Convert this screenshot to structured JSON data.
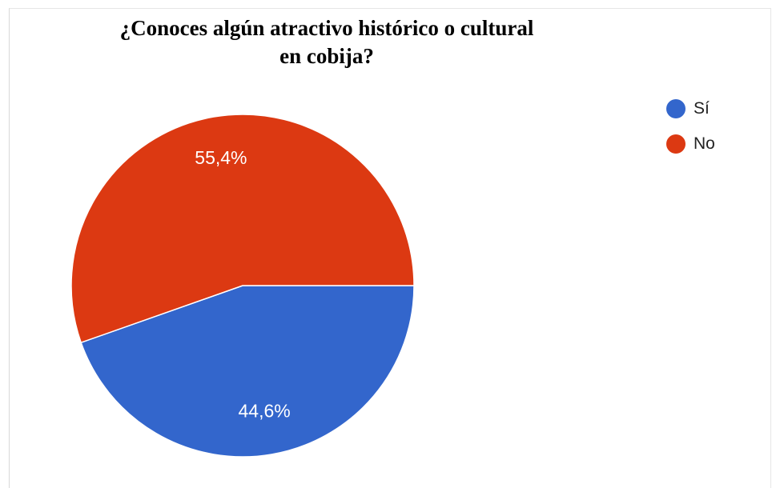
{
  "chart_data": {
    "type": "pie",
    "title_lines": [
      "¿Conoces algún atractivo histórico o cultural",
      "en cobija?"
    ],
    "slices": [
      {
        "name": "Sí",
        "value": 44.6,
        "label": "44,6%",
        "color": "#3366cc"
      },
      {
        "name": "No",
        "value": 55.4,
        "label": "55,4%",
        "color": "#dc3912"
      }
    ],
    "legend_position": "top-right"
  }
}
